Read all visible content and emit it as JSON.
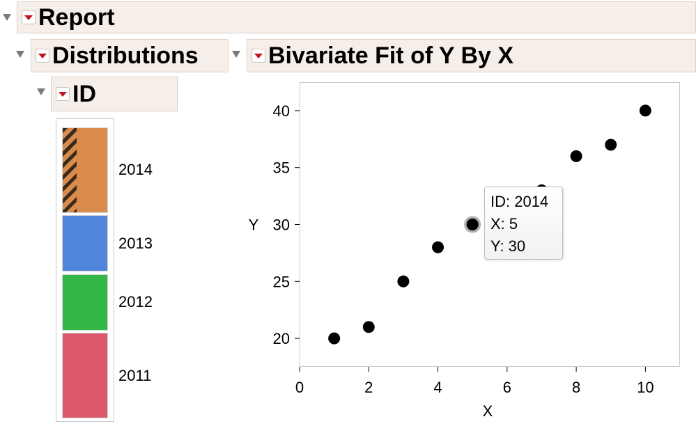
{
  "outline": {
    "report": "Report",
    "distributions": "Distributions",
    "id": "ID",
    "bivariate": "Bivariate Fit of Y By X"
  },
  "mosaic": {
    "segments": [
      {
        "label": "2014",
        "fraction": 0.3,
        "color": "#d98c4d",
        "hatched": true
      },
      {
        "label": "2013",
        "fraction": 0.2,
        "color": "#5085d9",
        "hatched": false
      },
      {
        "label": "2012",
        "fraction": 0.2,
        "color": "#33b847",
        "hatched": false
      },
      {
        "label": "2011",
        "fraction": 0.3,
        "color": "#dc586a",
        "hatched": false
      }
    ]
  },
  "chart_data": {
    "type": "scatter",
    "title": "Bivariate Fit of Y By X",
    "xlabel": "X",
    "ylabel": "Y",
    "xlim": [
      0,
      11
    ],
    "ylim": [
      17.5,
      42.5
    ],
    "xticks": [
      0,
      2,
      4,
      6,
      8,
      10
    ],
    "yticks": [
      20,
      25,
      30,
      35,
      40
    ],
    "points": [
      {
        "x": 1,
        "y": 20
      },
      {
        "x": 2,
        "y": 21
      },
      {
        "x": 3,
        "y": 25
      },
      {
        "x": 4,
        "y": 28
      },
      {
        "x": 5,
        "y": 30,
        "highlighted": true
      },
      {
        "x": 7,
        "y": 33
      },
      {
        "x": 8,
        "y": 36
      },
      {
        "x": 9,
        "y": 37
      },
      {
        "x": 10,
        "y": 40
      }
    ],
    "grid": false,
    "marker_color": "#000000",
    "hatch_color": "#3a2a1a"
  },
  "tooltip": {
    "line1": "ID: 2014",
    "line2": "X: 5",
    "line3": "Y: 30"
  }
}
